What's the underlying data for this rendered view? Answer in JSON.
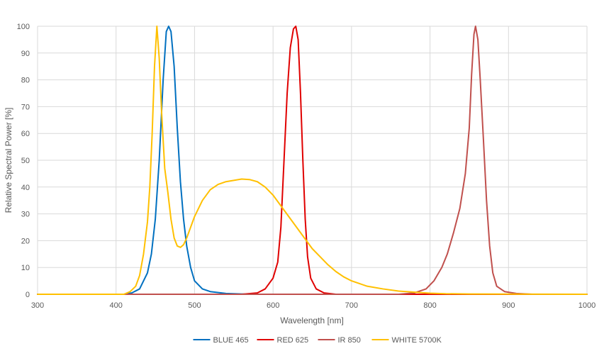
{
  "chart_data": {
    "type": "line",
    "xlabel": "Wavelength [nm]",
    "ylabel": "Relative Spectral Power [%]",
    "xlim": [
      300,
      1000
    ],
    "ylim": [
      0,
      100
    ],
    "x_ticks": [
      300,
      400,
      500,
      600,
      700,
      800,
      900,
      1000
    ],
    "y_ticks": [
      0,
      10,
      20,
      30,
      40,
      50,
      60,
      70,
      80,
      90,
      100
    ],
    "grid": true,
    "legend_position": "bottom",
    "series": [
      {
        "name": "BLUE 465",
        "color": "#0070c0",
        "points": [
          [
            300,
            0
          ],
          [
            410,
            0
          ],
          [
            420,
            0.5
          ],
          [
            430,
            2
          ],
          [
            440,
            8
          ],
          [
            445,
            15
          ],
          [
            450,
            28
          ],
          [
            455,
            50
          ],
          [
            460,
            80
          ],
          [
            464,
            98
          ],
          [
            467,
            100
          ],
          [
            470,
            98
          ],
          [
            474,
            85
          ],
          [
            478,
            62
          ],
          [
            482,
            42
          ],
          [
            486,
            28
          ],
          [
            490,
            18
          ],
          [
            495,
            10
          ],
          [
            500,
            5
          ],
          [
            510,
            2
          ],
          [
            520,
            1
          ],
          [
            540,
            0.3
          ],
          [
            570,
            0
          ],
          [
            1000,
            0
          ]
        ]
      },
      {
        "name": "RED 625",
        "color": "#e00000",
        "points": [
          [
            300,
            0
          ],
          [
            560,
            0
          ],
          [
            580,
            0.5
          ],
          [
            590,
            2
          ],
          [
            600,
            6
          ],
          [
            606,
            12
          ],
          [
            610,
            25
          ],
          [
            614,
            50
          ],
          [
            618,
            75
          ],
          [
            622,
            92
          ],
          [
            626,
            99
          ],
          [
            629,
            100
          ],
          [
            632,
            95
          ],
          [
            635,
            75
          ],
          [
            638,
            50
          ],
          [
            641,
            28
          ],
          [
            644,
            14
          ],
          [
            648,
            6
          ],
          [
            655,
            2
          ],
          [
            665,
            0.5
          ],
          [
            680,
            0
          ],
          [
            1000,
            0
          ]
        ]
      },
      {
        "name": "IR 850",
        "color": "#c0504d",
        "points": [
          [
            300,
            0
          ],
          [
            760,
            0
          ],
          [
            780,
            0.5
          ],
          [
            795,
            2
          ],
          [
            805,
            5
          ],
          [
            815,
            10
          ],
          [
            822,
            15
          ],
          [
            830,
            23
          ],
          [
            838,
            32
          ],
          [
            845,
            45
          ],
          [
            850,
            62
          ],
          [
            853,
            82
          ],
          [
            856,
            97
          ],
          [
            858,
            100
          ],
          [
            861,
            95
          ],
          [
            864,
            80
          ],
          [
            868,
            58
          ],
          [
            872,
            35
          ],
          [
            876,
            18
          ],
          [
            880,
            8
          ],
          [
            885,
            3
          ],
          [
            895,
            1
          ],
          [
            910,
            0.3
          ],
          [
            930,
            0
          ],
          [
            1000,
            0
          ]
        ]
      },
      {
        "name": "WHITE 5700K",
        "color": "#ffc000",
        "points": [
          [
            300,
            0
          ],
          [
            410,
            0
          ],
          [
            418,
            1
          ],
          [
            425,
            3
          ],
          [
            430,
            7
          ],
          [
            435,
            15
          ],
          [
            440,
            27
          ],
          [
            443,
            40
          ],
          [
            446,
            60
          ],
          [
            449,
            85
          ],
          [
            452,
            100
          ],
          [
            455,
            88
          ],
          [
            458,
            68
          ],
          [
            462,
            47
          ],
          [
            466,
            38
          ],
          [
            470,
            28
          ],
          [
            474,
            21
          ],
          [
            478,
            18
          ],
          [
            482,
            17.5
          ],
          [
            486,
            18.5
          ],
          [
            490,
            21
          ],
          [
            495,
            25
          ],
          [
            500,
            29
          ],
          [
            505,
            32
          ],
          [
            510,
            35
          ],
          [
            520,
            39
          ],
          [
            530,
            41
          ],
          [
            540,
            42
          ],
          [
            550,
            42.5
          ],
          [
            560,
            43
          ],
          [
            570,
            42.8
          ],
          [
            580,
            42
          ],
          [
            590,
            40
          ],
          [
            600,
            37
          ],
          [
            610,
            33
          ],
          [
            620,
            29
          ],
          [
            630,
            25
          ],
          [
            640,
            21
          ],
          [
            650,
            17
          ],
          [
            660,
            14
          ],
          [
            670,
            11
          ],
          [
            680,
            8.5
          ],
          [
            690,
            6.5
          ],
          [
            700,
            5
          ],
          [
            720,
            3
          ],
          [
            740,
            2
          ],
          [
            760,
            1.2
          ],
          [
            780,
            0.8
          ],
          [
            800,
            0.4
          ],
          [
            820,
            0.2
          ],
          [
            850,
            0.1
          ],
          [
            1000,
            0
          ]
        ]
      }
    ]
  }
}
